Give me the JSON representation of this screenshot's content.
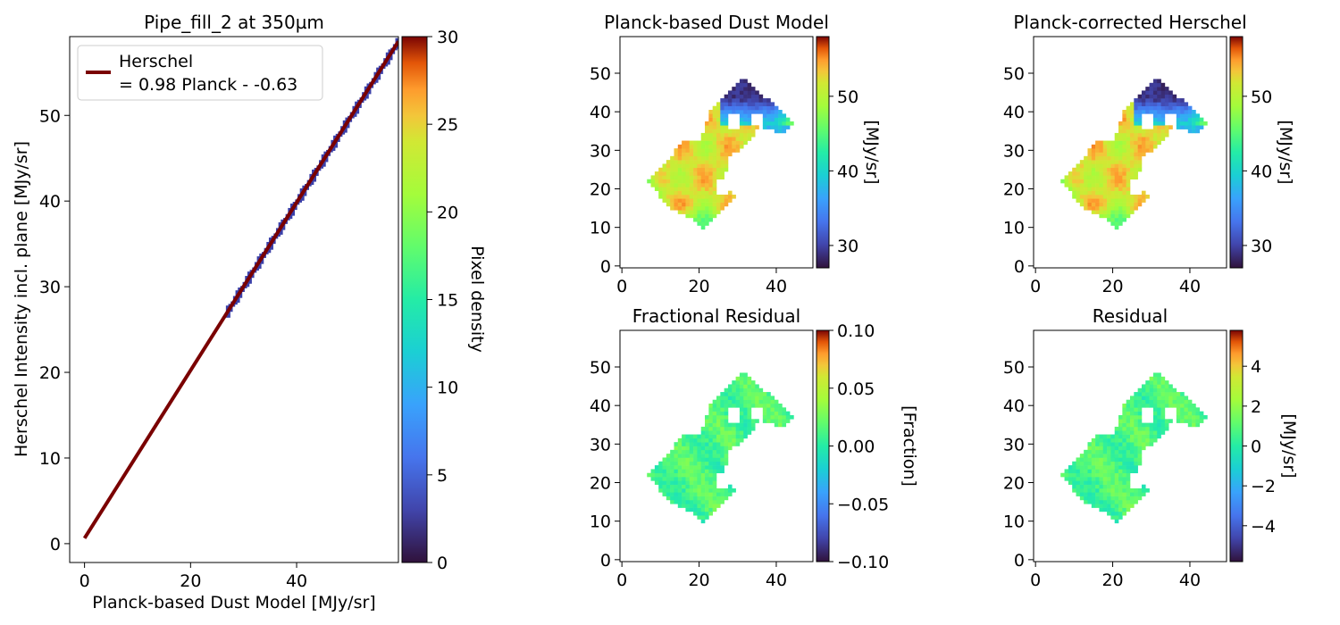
{
  "chart_data": [
    {
      "type": "heatmap",
      "title": "Pipe_fill_2 at 350µm",
      "xlabel": "Planck-based Dust Model [MJy/sr]",
      "ylabel": "Herschel Intensity incl. plane [MJy/sr]",
      "xlim": [
        -2.8,
        59.2
      ],
      "ylim": [
        -2.2,
        59.2
      ],
      "xticks": [
        "0",
        "20",
        "40"
      ],
      "yticks": [
        "0",
        "10",
        "20",
        "30",
        "40",
        "50"
      ],
      "colorbar": {
        "label": "Pixel density",
        "range": [
          0,
          30
        ],
        "ticks": [
          "0",
          "5",
          "10",
          "15",
          "20",
          "25",
          "30"
        ],
        "colormap": "turbo"
      },
      "legend": {
        "placement": "top-left",
        "entries": [
          {
            "line1": "Herschel",
            "line2": "= 0.98 Planck - -0.63"
          }
        ]
      },
      "fit_line": {
        "slope": 0.98,
        "intercept": 0.63,
        "x_range": [
          0,
          59.2
        ],
        "color": "#7a0000"
      },
      "density_ridge": {
        "x_range": [
          27,
          59
        ],
        "color": "#3a3fa8"
      }
    },
    {
      "type": "heatmap",
      "title": "Planck-based Dust Model",
      "xlim": [
        -0.5,
        49.5
      ],
      "ylim": [
        -0.5,
        59.5
      ],
      "xticks": [
        "0",
        "20",
        "40"
      ],
      "yticks": [
        "0",
        "10",
        "20",
        "30",
        "40",
        "50"
      ],
      "colorbar": {
        "label": "[MJy/sr]",
        "range": [
          27,
          58
        ],
        "ticks": [
          "30",
          "40",
          "50"
        ],
        "colormap": "turbo"
      }
    },
    {
      "type": "heatmap",
      "title": "Planck-corrected Herschel",
      "xlim": [
        -0.5,
        49.5
      ],
      "ylim": [
        -0.5,
        59.5
      ],
      "xticks": [
        "0",
        "20",
        "40"
      ],
      "yticks": [
        "0",
        "10",
        "20",
        "30",
        "40",
        "50"
      ],
      "colorbar": {
        "label": "[MJy/sr]",
        "range": [
          27,
          58
        ],
        "ticks": [
          "30",
          "40",
          "50"
        ],
        "colormap": "turbo"
      }
    },
    {
      "type": "heatmap",
      "title": "Fractional Residual",
      "xlim": [
        -0.5,
        49.5
      ],
      "ylim": [
        -0.5,
        59.5
      ],
      "xticks": [
        "0",
        "20",
        "40"
      ],
      "yticks": [
        "0",
        "10",
        "20",
        "30",
        "40",
        "50"
      ],
      "colorbar": {
        "label": "[Fraction]",
        "range": [
          -0.1,
          0.1
        ],
        "ticks": [
          "0.10",
          "0.05",
          "0.00",
          "−0.05",
          "−0.10"
        ],
        "colormap": "turbo"
      }
    },
    {
      "type": "heatmap",
      "title": "Residual",
      "xlim": [
        -0.5,
        49.5
      ],
      "ylim": [
        -0.5,
        59.5
      ],
      "xticks": [
        "0",
        "20",
        "40"
      ],
      "yticks": [
        "0",
        "10",
        "20",
        "30",
        "40",
        "50"
      ],
      "colorbar": {
        "label": "[MJy/sr]",
        "range": [
          -5.8,
          5.8
        ],
        "ticks": [
          "4",
          "2",
          "0",
          "−2",
          "−4"
        ],
        "colormap": "turbo"
      }
    }
  ]
}
